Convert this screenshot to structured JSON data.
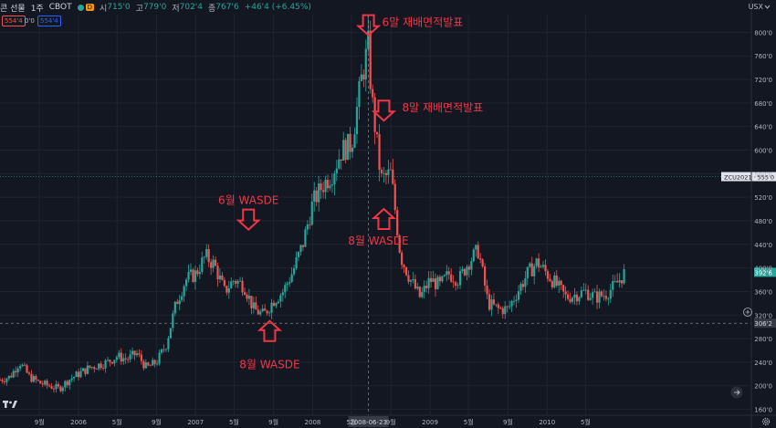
{
  "header": {
    "symbol_name": "콘 선물",
    "interval": "1주",
    "exchange": "CBOT",
    "badge": "D",
    "ohlc": {
      "o_label": "시",
      "o": "715'0",
      "h_label": "고",
      "h": "779'0",
      "l_label": "저",
      "l": "702'4",
      "c_label": "종",
      "c": "767'6",
      "change": "+46'4 (+6.45%)"
    },
    "bid": "554'4",
    "spread": "0'0",
    "ask": "554'4",
    "currency": "USX",
    "currency_icon": "chevron-down-icon"
  },
  "colors": {
    "bg": "#131722",
    "up": "#26a69a",
    "down": "#ef5350",
    "grid": "#1f2330",
    "annotation": "#f23645",
    "text": "#b2b5be"
  },
  "chart_data": {
    "type": "candlestick",
    "x_range": [
      "2005-05-01",
      "2011-09-30"
    ],
    "ylim": [
      1500,
      8300
    ],
    "y_ticks": [
      "160'0",
      "200'0",
      "240'0",
      "280'0",
      "320'0",
      "360'0",
      "400'0",
      "440'0",
      "480'0",
      "520'0",
      "560'0",
      "600'0",
      "640'0",
      "680'0",
      "720'0",
      "760'0",
      "800'0"
    ],
    "y_tick_values": [
      1600,
      2000,
      2400,
      2800,
      3200,
      3600,
      4000,
      4400,
      4800,
      5200,
      5600,
      6000,
      6400,
      6800,
      7200,
      7600,
      8000
    ],
    "x_ticks": [
      {
        "label": "9월",
        "date": "2005-09-01"
      },
      {
        "label": "2006",
        "date": "2006-01-01"
      },
      {
        "label": "5월",
        "date": "2006-05-01"
      },
      {
        "label": "9월",
        "date": "2006-09-01"
      },
      {
        "label": "2007",
        "date": "2007-01-01"
      },
      {
        "label": "5월",
        "date": "2007-05-01"
      },
      {
        "label": "9월",
        "date": "2007-09-01"
      },
      {
        "label": "2008",
        "date": "2008-01-01"
      },
      {
        "label": "5월",
        "date": "2008-05-01"
      },
      {
        "label": "9월",
        "date": "2008-09-01"
      },
      {
        "label": "2009",
        "date": "2009-01-01"
      },
      {
        "label": "5월",
        "date": "2009-05-01"
      },
      {
        "label": "9월",
        "date": "2009-09-01"
      },
      {
        "label": "2010",
        "date": "2010-01-01"
      },
      {
        "label": "5월",
        "date": "2010-05-01"
      }
    ],
    "series_close": [
      [
        "2005-05-01",
        2100
      ],
      [
        "2005-06-01",
        2150
      ],
      [
        "2005-07-01",
        2400
      ],
      [
        "2005-08-01",
        2150
      ],
      [
        "2005-09-01",
        2050
      ],
      [
        "2005-10-01",
        2000
      ],
      [
        "2005-11-01",
        1950
      ],
      [
        "2005-12-01",
        2100
      ],
      [
        "2006-01-01",
        2200
      ],
      [
        "2006-02-01",
        2300
      ],
      [
        "2006-03-01",
        2350
      ],
      [
        "2006-04-01",
        2400
      ],
      [
        "2006-05-01",
        2500
      ],
      [
        "2006-06-01",
        2450
      ],
      [
        "2006-07-01",
        2550
      ],
      [
        "2006-08-01",
        2300
      ],
      [
        "2006-09-01",
        2400
      ],
      [
        "2006-10-01",
        2700
      ],
      [
        "2006-11-01",
        3400
      ],
      [
        "2006-12-01",
        3800
      ],
      [
        "2007-01-01",
        3900
      ],
      [
        "2007-02-01",
        4200
      ],
      [
        "2007-03-01",
        4050
      ],
      [
        "2007-04-01",
        3600
      ],
      [
        "2007-05-01",
        3800
      ],
      [
        "2007-06-01",
        3700
      ],
      [
        "2007-07-01",
        3300
      ],
      [
        "2007-08-01",
        3200
      ],
      [
        "2007-09-01",
        3450
      ],
      [
        "2007-10-01",
        3600
      ],
      [
        "2007-11-01",
        3950
      ],
      [
        "2007-12-01",
        4400
      ],
      [
        "2008-01-01",
        5100
      ],
      [
        "2008-02-01",
        5400
      ],
      [
        "2008-03-01",
        5600
      ],
      [
        "2008-04-01",
        6000
      ],
      [
        "2008-05-01",
        6100
      ],
      [
        "2008-06-01",
        7200
      ],
      [
        "2008-06-23",
        7800
      ],
      [
        "2008-07-01",
        7000
      ],
      [
        "2008-08-01",
        5500
      ],
      [
        "2008-09-01",
        5600
      ],
      [
        "2008-10-01",
        4200
      ],
      [
        "2008-11-01",
        3800
      ],
      [
        "2008-12-01",
        3500
      ],
      [
        "2009-01-01",
        3800
      ],
      [
        "2009-02-01",
        3700
      ],
      [
        "2009-03-01",
        3900
      ],
      [
        "2009-04-01",
        3800
      ],
      [
        "2009-05-01",
        4100
      ],
      [
        "2009-06-01",
        4300
      ],
      [
        "2009-07-01",
        3400
      ],
      [
        "2009-08-01",
        3300
      ],
      [
        "2009-09-01",
        3300
      ],
      [
        "2009-10-01",
        3600
      ],
      [
        "2009-11-01",
        3900
      ],
      [
        "2009-12-01",
        4100
      ],
      [
        "2010-01-01",
        3900
      ],
      [
        "2010-02-01",
        3700
      ],
      [
        "2010-03-01",
        3500
      ],
      [
        "2010-04-01",
        3550
      ],
      [
        "2010-05-01",
        3600
      ],
      [
        "2010-06-01",
        3500
      ],
      [
        "2010-07-01",
        3550
      ],
      [
        "2010-08-01",
        3700
      ],
      [
        "2010-09-01",
        3926
      ]
    ],
    "crosshair": {
      "date": "2008-06-23",
      "date_label": "2008-06-23",
      "value": 3062,
      "price_label": "306'2"
    },
    "last_price": {
      "label": "392'6",
      "value": 3926
    },
    "reference_line": {
      "label": "ZCU2021 · 555'0",
      "value": 5550
    },
    "annotations": [
      {
        "text": "6말 재배면적발표",
        "date": "2008-06-23",
        "value": 7950,
        "arrow": "down"
      },
      {
        "text": "8말 재배면적발표",
        "date": "2008-08-10",
        "value": 6500,
        "arrow": "down"
      },
      {
        "text": "6월 WASDE",
        "date": "2007-06-15",
        "value": 4650,
        "arrow": "down"
      },
      {
        "text": "8월 WASDE",
        "date": "2007-08-20",
        "value": 3100,
        "arrow": "up"
      },
      {
        "text": "8월 WASDE",
        "date": "2008-08-10",
        "value": 5000,
        "arrow": "up"
      }
    ]
  },
  "footer": {
    "logo": "tradingview-logo",
    "settings_icon": "gear-icon",
    "goto_icon": "arrow-right-icon",
    "add_icon": "plus-icon"
  }
}
